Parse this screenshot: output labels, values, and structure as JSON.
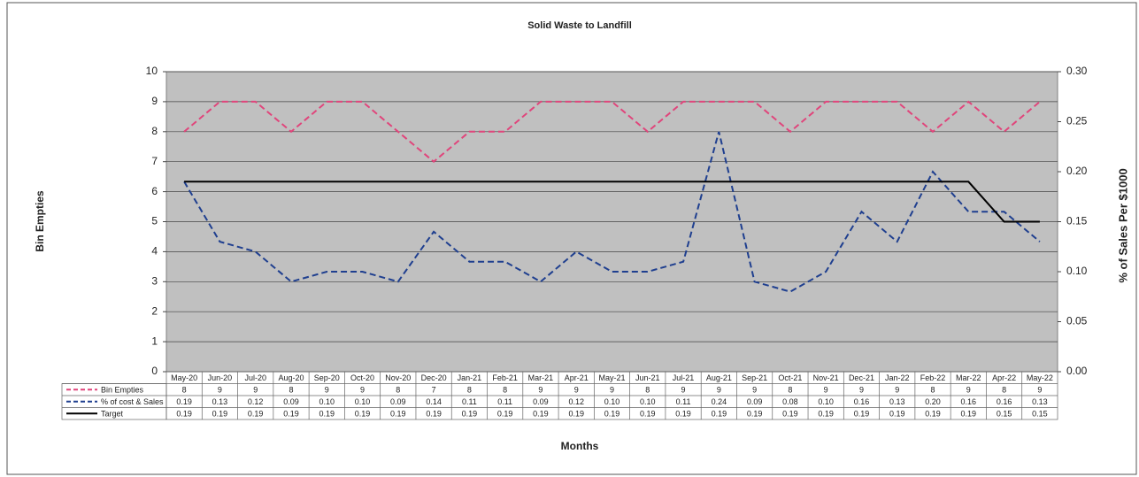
{
  "chart_data": {
    "type": "line",
    "title": "Solid Waste to Landfill",
    "x_label": "Months",
    "y_label": "Bin Empties",
    "y2_label": "% of Sales Per $1000",
    "categories": [
      "May-20",
      "Jun-20",
      "Jul-20",
      "Aug-20",
      "Sep-20",
      "Oct-20",
      "Nov-20",
      "Dec-20",
      "Jan-21",
      "Feb-21",
      "Mar-21",
      "Apr-21",
      "May-21",
      "Jun-21",
      "Jul-21",
      "Aug-21",
      "Sep-21",
      "Oct-21",
      "Nov-21",
      "Dec-21",
      "Jan-22",
      "Feb-22",
      "Mar-22",
      "Apr-22",
      "May-22"
    ],
    "series": [
      {
        "name": "Bin Empties",
        "color": "#e0457b",
        "dash": true,
        "values": [
          8,
          9,
          9,
          8,
          9,
          9,
          8,
          7,
          8,
          8,
          9,
          9,
          9,
          8,
          9,
          9,
          9,
          8,
          9,
          9,
          9,
          8,
          9,
          8,
          9
        ]
      },
      {
        "name": "% of cost & Sales",
        "color": "#1f3f8f",
        "dash": true,
        "axis": "y2",
        "values": [
          0.19,
          0.13,
          0.12,
          0.09,
          0.1,
          0.1,
          0.09,
          0.14,
          0.11,
          0.11,
          0.09,
          0.12,
          0.1,
          0.1,
          0.11,
          0.24,
          0.09,
          0.08,
          0.1,
          0.16,
          0.13,
          0.2,
          0.16,
          0.16,
          0.13
        ],
        "value_labels": [
          "0.19",
          "0.13",
          "0.12",
          "0.09",
          "0.10",
          "0.10",
          "0.09",
          "0.14",
          "0.11",
          "0.11",
          "0.09",
          "0.12",
          "0.10",
          "0.10",
          "0.11",
          "0.24",
          "0.09",
          "0.08",
          "0.10",
          "0.16",
          "0.13",
          "0.20",
          "0.16",
          "0.16",
          "0.13"
        ]
      },
      {
        "name": "Target",
        "color": "#000000",
        "dash": false,
        "axis": "y2",
        "values": [
          0.19,
          0.19,
          0.19,
          0.19,
          0.19,
          0.19,
          0.19,
          0.19,
          0.19,
          0.19,
          0.19,
          0.19,
          0.19,
          0.19,
          0.19,
          0.19,
          0.19,
          0.19,
          0.19,
          0.19,
          0.19,
          0.19,
          0.19,
          0.15,
          0.15
        ]
      }
    ],
    "ylim": [
      0,
      10
    ],
    "yticks": [
      0,
      1,
      2,
      3,
      4,
      5,
      6,
      7,
      8,
      9,
      10
    ],
    "y2lim": [
      0,
      0.3
    ],
    "y2ticks": [
      {
        "value": 0,
        "label": "0.00"
      },
      {
        "value": 0.05,
        "label": "0.05"
      },
      {
        "value": 0.1,
        "label": "0.10"
      },
      {
        "value": 0.15,
        "label": "0.15"
      },
      {
        "value": 0.2,
        "label": "0.20"
      },
      {
        "value": 0.25,
        "label": "0.25"
      },
      {
        "value": 0.3,
        "label": "0.30"
      }
    ],
    "grid": true
  }
}
